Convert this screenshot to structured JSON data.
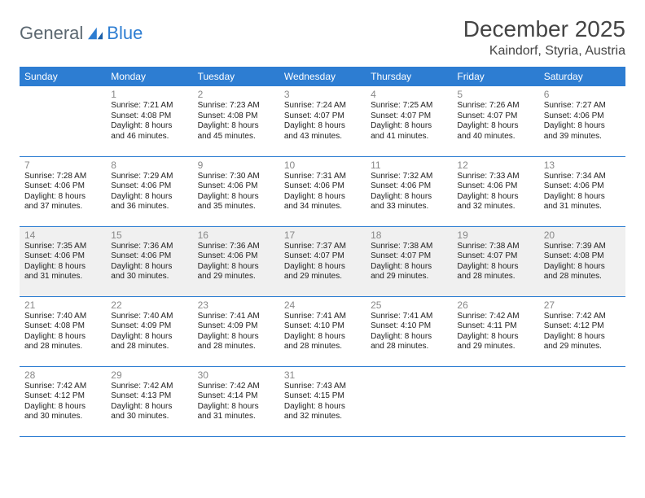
{
  "brand": {
    "part1": "General",
    "part2": "Blue"
  },
  "title": "December 2025",
  "location": "Kaindorf, Styria, Austria",
  "colors": {
    "header_bg": "#2d7dd2",
    "header_text": "#ffffff",
    "border": "#2d7dd2",
    "daynum": "#888888",
    "shaded_bg": "#f0f0f0",
    "logo_gray": "#5b6770",
    "logo_blue": "#2d7dd2"
  },
  "day_headers": [
    "Sunday",
    "Monday",
    "Tuesday",
    "Wednesday",
    "Thursday",
    "Friday",
    "Saturday"
  ],
  "weeks": [
    {
      "shaded": false,
      "days": [
        null,
        {
          "n": "1",
          "sunrise": "7:21 AM",
          "sunset": "4:08 PM",
          "daylight": "8 hours and 46 minutes."
        },
        {
          "n": "2",
          "sunrise": "7:23 AM",
          "sunset": "4:08 PM",
          "daylight": "8 hours and 45 minutes."
        },
        {
          "n": "3",
          "sunrise": "7:24 AM",
          "sunset": "4:07 PM",
          "daylight": "8 hours and 43 minutes."
        },
        {
          "n": "4",
          "sunrise": "7:25 AM",
          "sunset": "4:07 PM",
          "daylight": "8 hours and 41 minutes."
        },
        {
          "n": "5",
          "sunrise": "7:26 AM",
          "sunset": "4:07 PM",
          "daylight": "8 hours and 40 minutes."
        },
        {
          "n": "6",
          "sunrise": "7:27 AM",
          "sunset": "4:06 PM",
          "daylight": "8 hours and 39 minutes."
        }
      ]
    },
    {
      "shaded": false,
      "days": [
        {
          "n": "7",
          "sunrise": "7:28 AM",
          "sunset": "4:06 PM",
          "daylight": "8 hours and 37 minutes."
        },
        {
          "n": "8",
          "sunrise": "7:29 AM",
          "sunset": "4:06 PM",
          "daylight": "8 hours and 36 minutes."
        },
        {
          "n": "9",
          "sunrise": "7:30 AM",
          "sunset": "4:06 PM",
          "daylight": "8 hours and 35 minutes."
        },
        {
          "n": "10",
          "sunrise": "7:31 AM",
          "sunset": "4:06 PM",
          "daylight": "8 hours and 34 minutes."
        },
        {
          "n": "11",
          "sunrise": "7:32 AM",
          "sunset": "4:06 PM",
          "daylight": "8 hours and 33 minutes."
        },
        {
          "n": "12",
          "sunrise": "7:33 AM",
          "sunset": "4:06 PM",
          "daylight": "8 hours and 32 minutes."
        },
        {
          "n": "13",
          "sunrise": "7:34 AM",
          "sunset": "4:06 PM",
          "daylight": "8 hours and 31 minutes."
        }
      ]
    },
    {
      "shaded": true,
      "days": [
        {
          "n": "14",
          "sunrise": "7:35 AM",
          "sunset": "4:06 PM",
          "daylight": "8 hours and 31 minutes."
        },
        {
          "n": "15",
          "sunrise": "7:36 AM",
          "sunset": "4:06 PM",
          "daylight": "8 hours and 30 minutes."
        },
        {
          "n": "16",
          "sunrise": "7:36 AM",
          "sunset": "4:06 PM",
          "daylight": "8 hours and 29 minutes."
        },
        {
          "n": "17",
          "sunrise": "7:37 AM",
          "sunset": "4:07 PM",
          "daylight": "8 hours and 29 minutes."
        },
        {
          "n": "18",
          "sunrise": "7:38 AM",
          "sunset": "4:07 PM",
          "daylight": "8 hours and 29 minutes."
        },
        {
          "n": "19",
          "sunrise": "7:38 AM",
          "sunset": "4:07 PM",
          "daylight": "8 hours and 28 minutes."
        },
        {
          "n": "20",
          "sunrise": "7:39 AM",
          "sunset": "4:08 PM",
          "daylight": "8 hours and 28 minutes."
        }
      ]
    },
    {
      "shaded": false,
      "days": [
        {
          "n": "21",
          "sunrise": "7:40 AM",
          "sunset": "4:08 PM",
          "daylight": "8 hours and 28 minutes."
        },
        {
          "n": "22",
          "sunrise": "7:40 AM",
          "sunset": "4:09 PM",
          "daylight": "8 hours and 28 minutes."
        },
        {
          "n": "23",
          "sunrise": "7:41 AM",
          "sunset": "4:09 PM",
          "daylight": "8 hours and 28 minutes."
        },
        {
          "n": "24",
          "sunrise": "7:41 AM",
          "sunset": "4:10 PM",
          "daylight": "8 hours and 28 minutes."
        },
        {
          "n": "25",
          "sunrise": "7:41 AM",
          "sunset": "4:10 PM",
          "daylight": "8 hours and 28 minutes."
        },
        {
          "n": "26",
          "sunrise": "7:42 AM",
          "sunset": "4:11 PM",
          "daylight": "8 hours and 29 minutes."
        },
        {
          "n": "27",
          "sunrise": "7:42 AM",
          "sunset": "4:12 PM",
          "daylight": "8 hours and 29 minutes."
        }
      ]
    },
    {
      "shaded": false,
      "days": [
        {
          "n": "28",
          "sunrise": "7:42 AM",
          "sunset": "4:12 PM",
          "daylight": "8 hours and 30 minutes."
        },
        {
          "n": "29",
          "sunrise": "7:42 AM",
          "sunset": "4:13 PM",
          "daylight": "8 hours and 30 minutes."
        },
        {
          "n": "30",
          "sunrise": "7:42 AM",
          "sunset": "4:14 PM",
          "daylight": "8 hours and 31 minutes."
        },
        {
          "n": "31",
          "sunrise": "7:43 AM",
          "sunset": "4:15 PM",
          "daylight": "8 hours and 32 minutes."
        },
        null,
        null,
        null
      ]
    }
  ],
  "labels": {
    "sunrise": "Sunrise:",
    "sunset": "Sunset:",
    "daylight": "Daylight:"
  }
}
